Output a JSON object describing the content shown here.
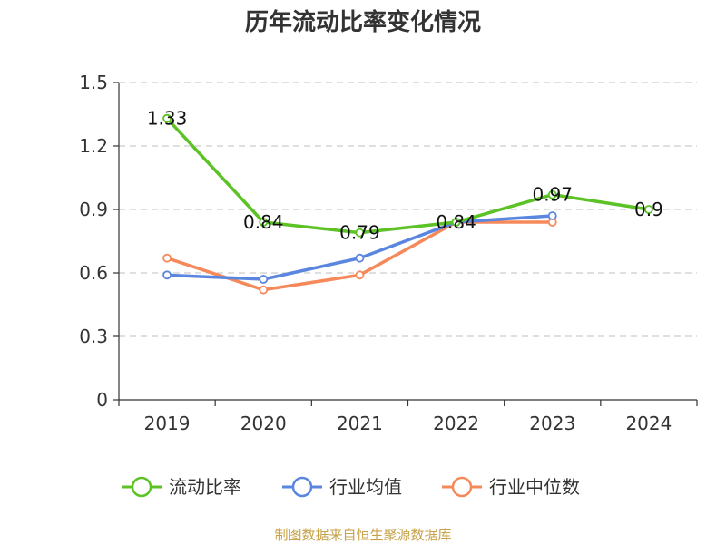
{
  "source_note": "制图数据来自恒生聚源数据库",
  "chart_data": {
    "type": "line",
    "title": "历年流动比率变化情况",
    "categories": [
      "2019",
      "2020",
      "2021",
      "2022",
      "2023",
      "2024"
    ],
    "ylim": [
      0,
      1.5
    ],
    "yticks": [
      "0",
      "0.3",
      "0.6",
      "0.9",
      "1.2",
      "1.5"
    ],
    "grid": true,
    "legend_position": "bottom",
    "series": [
      {
        "name": "流动比率",
        "color": "#5cc226",
        "values": [
          1.33,
          0.84,
          0.79,
          0.84,
          0.97,
          0.9
        ],
        "labels": [
          "1.33",
          "0.84",
          "0.79",
          "0.84",
          "0.97",
          "0.9"
        ]
      },
      {
        "name": "行业均值",
        "color": "#5b86df",
        "values": [
          0.59,
          0.57,
          0.67,
          0.84,
          0.87,
          null
        ]
      },
      {
        "name": "行业中位数",
        "color": "#f5895a",
        "values": [
          0.67,
          0.52,
          0.59,
          0.84,
          0.84,
          null
        ]
      }
    ]
  }
}
